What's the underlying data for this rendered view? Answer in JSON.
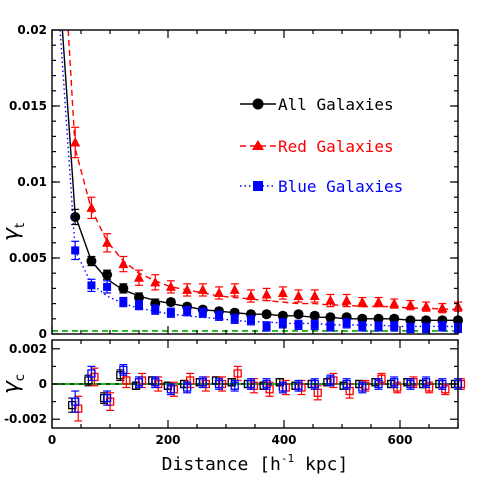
{
  "chart_data": [
    {
      "type": "line",
      "panel": "top",
      "xlabel_main": "Distance [h",
      "xlabel_sup": "-1",
      "xlabel_end": " kpc]",
      "ylabel_main": "γ",
      "ylabel_sub": "t",
      "xlim": [
        0,
        700
      ],
      "ylim": [
        0,
        0.02
      ],
      "xticks": [
        0,
        200,
        400,
        600
      ],
      "yticks": [
        0,
        0.005,
        0.01,
        0.015,
        0.02
      ],
      "ytick_labels": [
        "0",
        "0.005",
        "0.01",
        "0.015",
        "0.02"
      ],
      "grid": false,
      "legend_placement": "right",
      "colors": {
        "all": "#000000",
        "red": "#ff0000",
        "blue": "#0000ff",
        "zero_line": "#00aa00"
      },
      "legend": [
        {
          "label": "All Galaxies",
          "marker": "circle",
          "line": "solid",
          "color": "#000000"
        },
        {
          "label": "Red Galaxies",
          "marker": "triangle",
          "line": "dashed",
          "color": "#ff0000"
        },
        {
          "label": "Blue Galaxies",
          "marker": "square",
          "line": "dotted",
          "color": "#0000ff"
        }
      ],
      "x": [
        40,
        68,
        95,
        123,
        150,
        178,
        205,
        233,
        260,
        288,
        315,
        343,
        370,
        398,
        425,
        453,
        480,
        508,
        535,
        563,
        590,
        618,
        645,
        673,
        700
      ],
      "series": [
        {
          "name": "All Galaxies",
          "marker": "circle",
          "values": [
            0.0077,
            0.0048,
            0.0039,
            0.003,
            0.0024,
            0.002,
            0.0021,
            0.0018,
            0.0016,
            0.0015,
            0.0014,
            0.0013,
            0.0013,
            0.0012,
            0.0013,
            0.0012,
            0.0011,
            0.0011,
            0.001,
            0.001,
            0.001,
            0.0009,
            0.0009,
            0.0009,
            0.0009
          ],
          "errors": [
            0.0005,
            0.0003,
            0.0003,
            0.0003,
            0.0003,
            0.0003,
            0.0002,
            0.0002,
            0.0002,
            0.0002,
            0.0002,
            0.0002,
            0.0002,
            0.0002,
            0.0002,
            0.0002,
            0.0002,
            0.0002,
            0.0002,
            0.0002,
            0.0002,
            0.0002,
            0.0002,
            0.0002,
            0.0002
          ],
          "model": [
            0.02,
            0.0078,
            0.0048,
            0.0036,
            0.0029,
            0.0025,
            0.0022,
            0.002,
            0.0018,
            0.0016,
            0.0015,
            0.0014,
            0.0013,
            0.0013,
            0.0012,
            0.0012,
            0.0011,
            0.0011,
            0.001,
            0.001,
            0.001,
            0.001,
            0.0009,
            0.0009,
            0.0009
          ],
          "model_x": [
            18,
            40,
            68,
            95,
            123,
            150,
            178,
            205,
            233,
            260,
            288,
            315,
            343,
            370,
            398,
            425,
            453,
            480,
            508,
            535,
            563,
            590,
            618,
            645,
            700
          ]
        },
        {
          "name": "Red Galaxies",
          "marker": "triangle",
          "values": [
            0.0126,
            0.0083,
            0.006,
            0.0046,
            0.0037,
            0.0034,
            0.0031,
            0.0029,
            0.0029,
            0.0027,
            0.0029,
            0.0025,
            0.0026,
            0.0027,
            0.0025,
            0.0025,
            0.0022,
            0.0022,
            0.0021,
            0.0021,
            0.002,
            0.0019,
            0.0018,
            0.0017,
            0.0018
          ],
          "errors": [
            0.001,
            0.0007,
            0.0006,
            0.0005,
            0.0005,
            0.0005,
            0.0004,
            0.0004,
            0.0004,
            0.0004,
            0.0004,
            0.0004,
            0.0004,
            0.0004,
            0.0004,
            0.0004,
            0.0004,
            0.0004,
            0.0003,
            0.0003,
            0.0003,
            0.0003,
            0.0003,
            0.0003,
            0.0003
          ],
          "model": [
            0.02,
            0.0122,
            0.0082,
            0.0061,
            0.0048,
            0.004,
            0.0035,
            0.0031,
            0.0029,
            0.0027,
            0.0025,
            0.0024,
            0.0023,
            0.0022,
            0.0021,
            0.002,
            0.002,
            0.0019,
            0.0019,
            0.0018,
            0.0018,
            0.0018,
            0.0017,
            0.0017,
            0.0016
          ],
          "model_x": [
            28,
            40,
            68,
            95,
            123,
            150,
            178,
            205,
            233,
            260,
            288,
            315,
            343,
            370,
            398,
            425,
            453,
            480,
            508,
            535,
            563,
            590,
            618,
            645,
            700
          ]
        },
        {
          "name": "Blue Galaxies",
          "marker": "square",
          "values": [
            0.0055,
            0.0032,
            0.0031,
            0.0021,
            0.0019,
            0.0016,
            0.0014,
            0.0015,
            0.0014,
            0.0012,
            0.001,
            0.0009,
            0.0005,
            0.0007,
            0.0006,
            0.0006,
            0.0005,
            0.0007,
            0.0005,
            0.0005,
            0.0005,
            0.0004,
            0.0004,
            0.0005,
            0.0004
          ],
          "errors": [
            0.0006,
            0.0004,
            0.0004,
            0.0003,
            0.0003,
            0.0003,
            0.0003,
            0.0003,
            0.0003,
            0.0003,
            0.0003,
            0.0003,
            0.0003,
            0.0003,
            0.0003,
            0.0003,
            0.0003,
            0.0003,
            0.0003,
            0.0003,
            0.0003,
            0.0003,
            0.0003,
            0.0003,
            0.0003
          ],
          "model": [
            0.02,
            0.0055,
            0.0033,
            0.0025,
            0.002,
            0.0017,
            0.0015,
            0.0013,
            0.0012,
            0.0011,
            0.001,
            0.0009,
            0.0008,
            0.0008,
            0.0007,
            0.0007,
            0.0007,
            0.0006,
            0.0006,
            0.0006,
            0.0006,
            0.0005,
            0.0005,
            0.0005,
            0.0005
          ],
          "model_x": [
            14,
            40,
            68,
            95,
            123,
            150,
            178,
            205,
            233,
            260,
            288,
            315,
            343,
            370,
            398,
            425,
            453,
            480,
            508,
            535,
            563,
            590,
            618,
            645,
            700
          ]
        }
      ],
      "zero_line": 0.0002
    },
    {
      "type": "scatter",
      "panel": "bottom",
      "ylabel_main": "γ",
      "ylabel_sub": "c",
      "xlim": [
        0,
        700
      ],
      "ylim": [
        -0.0025,
        0.0025
      ],
      "xticks": [
        0,
        200,
        400,
        600
      ],
      "xtick_labels": [
        "0",
        "200",
        "400",
        "600"
      ],
      "yticks": [
        -0.002,
        0,
        0.002
      ],
      "ytick_labels": [
        "-0.002",
        "0",
        "0.002"
      ],
      "x": [
        40,
        68,
        95,
        123,
        150,
        178,
        205,
        233,
        260,
        288,
        315,
        343,
        370,
        398,
        425,
        453,
        480,
        508,
        535,
        563,
        590,
        618,
        645,
        673,
        700
      ],
      "series": [
        {
          "name": "All Galaxies",
          "values": [
            -0.0012,
            0.0002,
            -0.0008,
            0.0005,
            -0.0001,
            0.0002,
            -0.0001,
            0.0,
            0.0001,
            0.0002,
            0.0001,
            0.0,
            -0.0001,
            0.0001,
            -0.0001,
            0.0,
            0.0001,
            -0.0001,
            0.0,
            0.0001,
            0.0,
            0.0001,
            0.0,
            0.0,
            0.0
          ],
          "errors": [
            0.0004,
            0.0003,
            0.0003,
            0.0003,
            0.0002,
            0.0002,
            0.0002,
            0.0002,
            0.0002,
            0.0002,
            0.0002,
            0.0002,
            0.0002,
            0.0002,
            0.0002,
            0.0002,
            0.0002,
            0.0002,
            0.0002,
            0.0002,
            0.0002,
            0.0002,
            0.0002,
            0.0002,
            0.0002
          ]
        },
        {
          "name": "Red Galaxies",
          "values": [
            -0.0014,
            0.0004,
            -0.001,
            0.0002,
            0.0002,
            0.0,
            -0.0003,
            0.0002,
            0.0,
            0.0,
            0.0006,
            -0.0001,
            -0.0003,
            -0.0002,
            -0.0002,
            -0.0005,
            0.0002,
            -0.0004,
            -0.0001,
            0.0003,
            -0.0002,
            0.0001,
            -0.0002,
            -0.0003,
            0.0
          ],
          "errors": [
            0.0007,
            0.0005,
            0.0005,
            0.0004,
            0.0004,
            0.0004,
            0.0004,
            0.0004,
            0.0004,
            0.0004,
            0.0004,
            0.0004,
            0.0004,
            0.0004,
            0.0004,
            0.0004,
            0.0004,
            0.0004,
            0.0003,
            0.0003,
            0.0003,
            0.0003,
            0.0003,
            0.0003,
            0.0003
          ]
        },
        {
          "name": "Blue Galaxies",
          "values": [
            -0.001,
            0.0006,
            -0.0008,
            0.0008,
            0.0001,
            0.0001,
            -0.0003,
            -0.0002,
            0.0001,
            0.0,
            -0.0001,
            0.0,
            0.0,
            -0.0002,
            -0.0001,
            0.0,
            0.0002,
            0.0,
            -0.0002,
            0.0,
            0.0001,
            0.0,
            0.0001,
            0.0,
            0.0
          ],
          "errors": [
            0.0006,
            0.0004,
            0.0004,
            0.0003,
            0.0003,
            0.0003,
            0.0003,
            0.0003,
            0.0003,
            0.0003,
            0.0003,
            0.0003,
            0.0003,
            0.0003,
            0.0003,
            0.0003,
            0.0003,
            0.0003,
            0.0003,
            0.0003,
            0.0003,
            0.0003,
            0.0003,
            0.0003,
            0.0003
          ]
        }
      ],
      "zero_line": 0
    }
  ]
}
